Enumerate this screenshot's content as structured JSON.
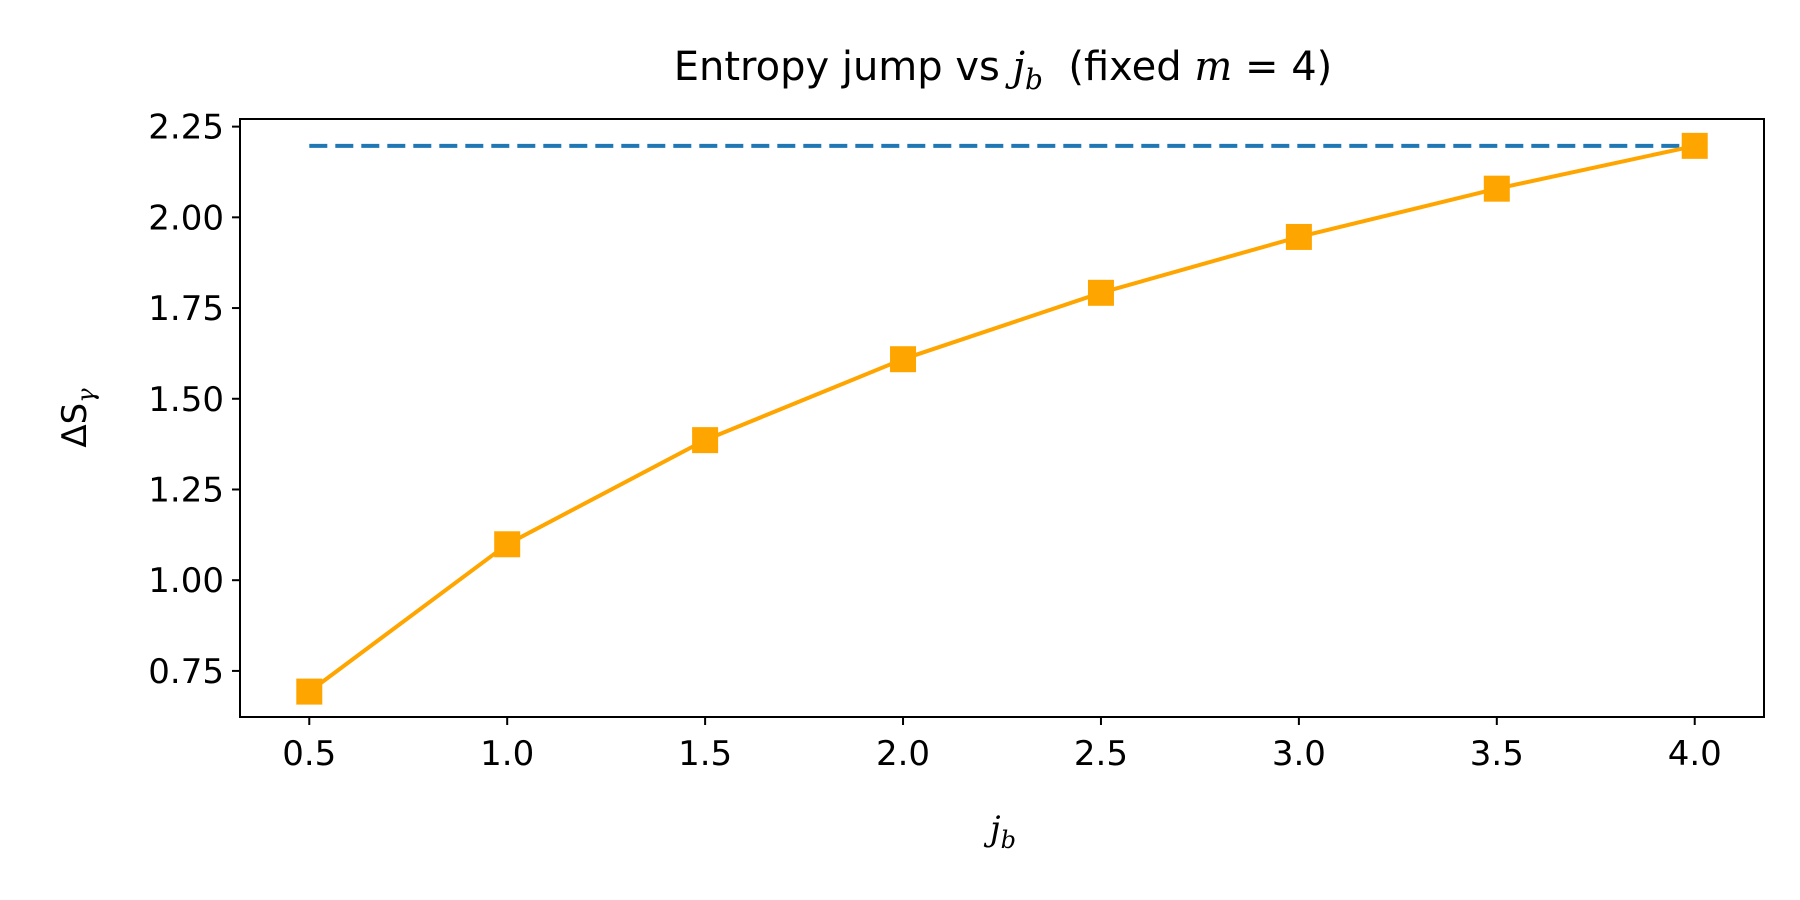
{
  "chart_data": {
    "type": "line",
    "title": {
      "prefix": "Entropy jump vs ",
      "var": "j",
      "var_sub": "b",
      "paren_open": "  (fixed ",
      "m": "m",
      "eq": " = 4)"
    },
    "xlabel": {
      "main": "j",
      "sub": "b"
    },
    "ylabel": {
      "main": "ΔS",
      "sub": "γ"
    },
    "xlim": [
      0.325,
      4.175
    ],
    "ylim": [
      0.623,
      2.271
    ],
    "x_ticks": [
      0.5,
      1.0,
      1.5,
      2.0,
      2.5,
      3.0,
      3.5,
      4.0
    ],
    "x_tick_labels": [
      "0.5",
      "1.0",
      "1.5",
      "2.0",
      "2.5",
      "3.0",
      "3.5",
      "4.0"
    ],
    "y_ticks": [
      0.75,
      1.0,
      1.25,
      1.5,
      1.75,
      2.0,
      2.25
    ],
    "y_tick_labels": [
      "0.75",
      "1.00",
      "1.25",
      "1.50",
      "1.75",
      "2.00",
      "2.25"
    ],
    "grid": false,
    "series": [
      {
        "x": [
          0.5,
          1.0,
          1.5,
          2.0,
          2.5,
          3.0,
          3.5,
          4.0
        ],
        "y": [
          0.693,
          1.099,
          1.386,
          1.609,
          1.792,
          1.946,
          2.079,
          2.197
        ],
        "color": "#ffa500",
        "marker": "square",
        "line": "solid"
      },
      {
        "x": [
          0.5,
          4.0
        ],
        "y": [
          2.197,
          2.197
        ],
        "color": "#1f77b4",
        "marker": "none",
        "line": "dashed"
      }
    ]
  }
}
